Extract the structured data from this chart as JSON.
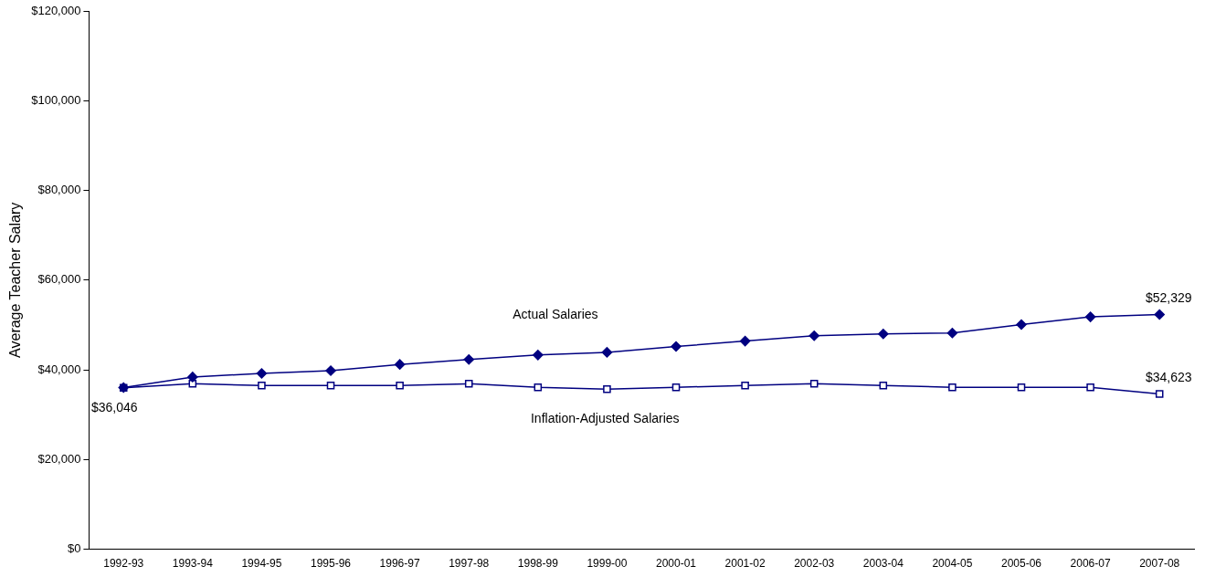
{
  "chart_data": {
    "type": "line",
    "ylabel": "Average Teacher Salary",
    "categories": [
      "1992-93",
      "1993-94",
      "1994-95",
      "1995-96",
      "1996-97",
      "1997-98",
      "1998-99",
      "1999-00",
      "2000-01",
      "2001-02",
      "2002-03",
      "2003-04",
      "2004-05",
      "2005-06",
      "2006-07",
      "2007-08"
    ],
    "series": [
      {
        "color": "#000080",
        "marker": "diamond",
        "values": [
          36046,
          38400,
          39200,
          39800,
          41200,
          42300,
          43300,
          43900,
          45200,
          46400,
          47600,
          48000,
          48200,
          50100,
          51800,
          52329
        ],
        "value_labels": [
          "$36,046",
          null,
          null,
          null,
          null,
          null,
          null,
          null,
          null,
          null,
          null,
          null,
          null,
          null,
          null,
          "$52,329"
        ]
      },
      {
        "color": "#000080",
        "marker": "square",
        "values": [
          36000,
          36900,
          36500,
          36500,
          36500,
          36900,
          36100,
          35700,
          36100,
          36500,
          36900,
          36500,
          36100,
          36100,
          36100,
          34623
        ],
        "value_labels": [
          null,
          null,
          null,
          null,
          null,
          null,
          null,
          null,
          null,
          null,
          null,
          null,
          null,
          null,
          null,
          "$34,623"
        ]
      }
    ],
    "ylim": [
      0,
      120000
    ],
    "yticks": [
      {
        "value": 0,
        "label": "$0"
      },
      {
        "value": 20000,
        "label": "$20,000"
      },
      {
        "value": 40000,
        "label": "$40,000"
      },
      {
        "value": 60000,
        "label": "$60,000"
      },
      {
        "value": 80000,
        "label": "$80,000"
      },
      {
        "value": 100000,
        "label": "$100,000"
      },
      {
        "value": 120000,
        "label": "$120,000"
      }
    ],
    "annotations": [
      "Actual Salaries",
      "Inflation-Adjusted Salaries"
    ],
    "grid": false,
    "legend": false
  }
}
